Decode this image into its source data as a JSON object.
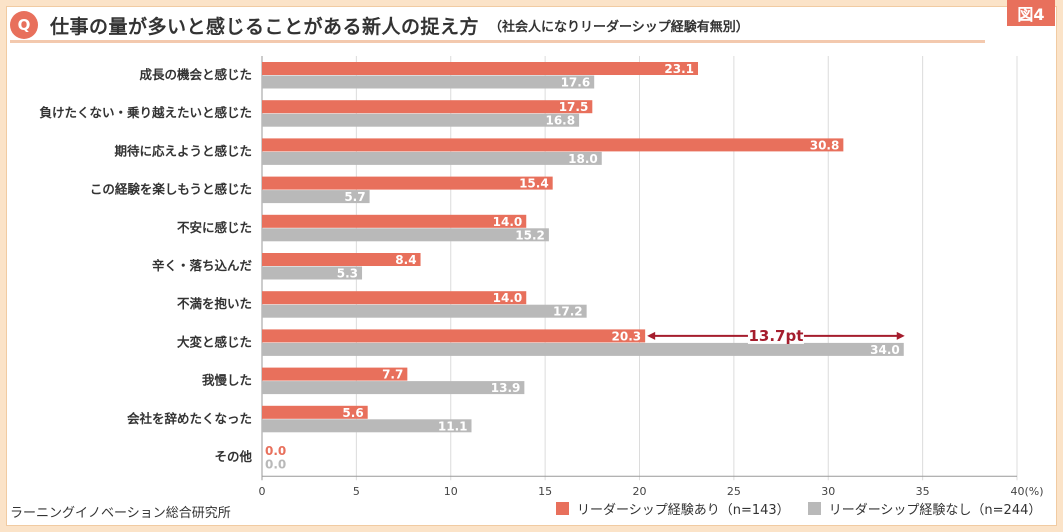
{
  "badge": "図4",
  "header": {
    "q_label": "Q",
    "title": "仕事の量が多いと感じることがある新人の捉え方",
    "subtitle": "（社会人になりリーダーシップ経験有無別）"
  },
  "source": "ラーニングイノベーション総合研究所",
  "colors": {
    "with": "#e8705c",
    "without": "#b9b9b9",
    "annotation": "#a51d2d"
  },
  "chart_data": {
    "type": "bar",
    "orientation": "horizontal",
    "categories": [
      "成長の機会と感じた",
      "負けたくない・乗り越えたいと感じた",
      "期待に応えようと感じた",
      "この経験を楽しもうと感じた",
      "不安に感じた",
      "辛く・落ち込んだ",
      "不満を抱いた",
      "大変と感じた",
      "我慢した",
      "会社を辞めたくなった",
      "その他"
    ],
    "series": [
      {
        "name": "リーダーシップ経験あり（n=143）",
        "values": [
          23.1,
          17.5,
          30.8,
          15.4,
          14.0,
          8.4,
          14.0,
          20.3,
          7.7,
          5.6,
          0.0
        ]
      },
      {
        "name": "リーダーシップ経験なし（n=244）",
        "values": [
          17.6,
          16.8,
          18.0,
          5.7,
          15.2,
          5.3,
          17.2,
          34.0,
          13.9,
          11.1,
          0.0
        ]
      }
    ],
    "xlim": [
      0,
      40
    ],
    "xticks": [
      "0",
      "5",
      "10",
      "15",
      "20",
      "25",
      "30",
      "35",
      "40(%)"
    ],
    "annotation": {
      "category": "大変と感じた",
      "text": "13.7pt",
      "from": 20.3,
      "to": 34.0
    }
  }
}
